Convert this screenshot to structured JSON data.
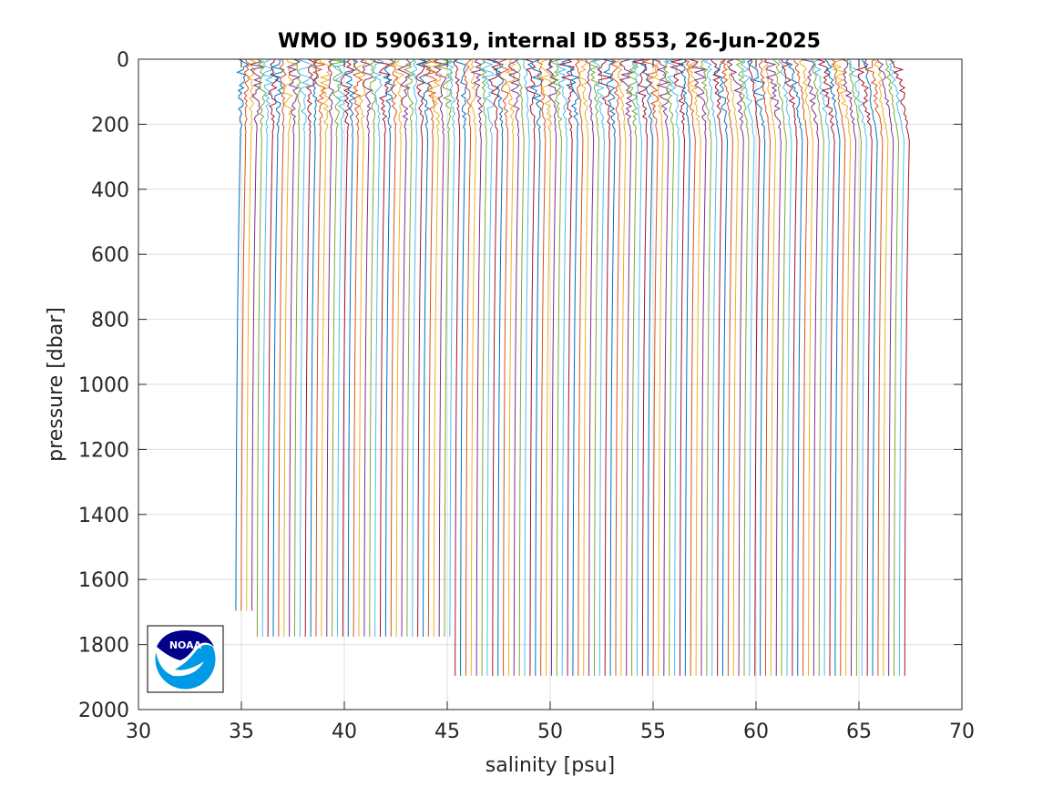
{
  "chart_data": {
    "type": "line",
    "title": "WMO ID 5906319, internal ID 8553, 26-Jun-2025",
    "xlabel": "salinity [psu]",
    "ylabel": "pressure [dbar]",
    "xlim": [
      30,
      70
    ],
    "ylim": [
      0,
      2000
    ],
    "y_reversed": true,
    "grid": true,
    "xticks": [
      "30",
      "35",
      "40",
      "45",
      "50",
      "55",
      "60",
      "65",
      "70"
    ],
    "yticks": [
      "0",
      "200",
      "400",
      "600",
      "800",
      "1000",
      "1200",
      "1400",
      "1600",
      "1800",
      "2000"
    ],
    "series_colors": [
      "#0072BD",
      "#D95319",
      "#EDB120",
      "#7E2F8E",
      "#77AC30",
      "#4DBEEE",
      "#A2142F"
    ],
    "profiles": {
      "count": 126,
      "description_note": "",
      "first_surface_salinity": 35.0,
      "last_surface_salinity": 66.8,
      "offset_step": 0.255,
      "deep_salinity_base": 34.7,
      "deep_salinity_last": 67.2,
      "max_pressure_groups": [
        {
          "first_profile": 0,
          "last_profile": 3,
          "max_pressure": 1700
        },
        {
          "first_profile": 4,
          "last_profile": 40,
          "max_pressure": 1800
        },
        {
          "first_profile": 41,
          "last_profile": 125,
          "max_pressure": 1900
        }
      ]
    },
    "logo": {
      "text": "NOAA",
      "colors": [
        "#00008B",
        "#0099E6",
        "#ffffff"
      ]
    }
  }
}
